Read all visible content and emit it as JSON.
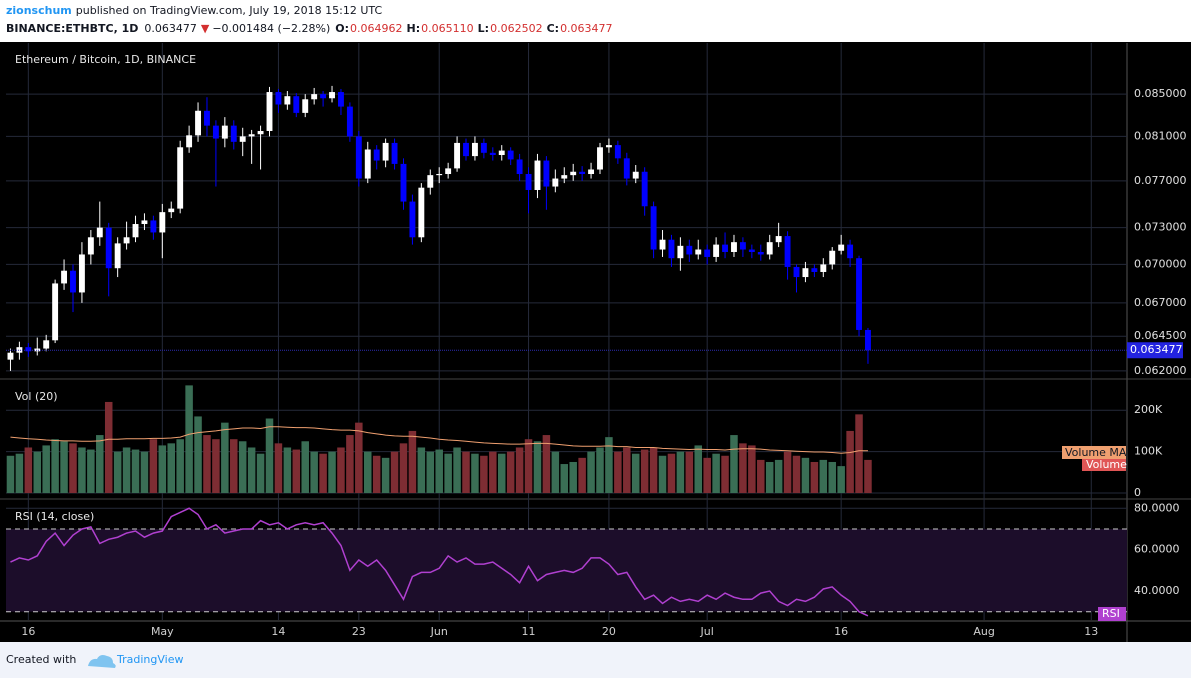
{
  "header": {
    "author": "zionschum",
    "published": "published on TradingView.com, July 19, 2018 15:12 UTC",
    "symbol": "BINANCE:ETHBTC, 1D",
    "close": "0.063477",
    "arrow": "▼",
    "change": "−0.001484 (−2.28%)",
    "open_label": "O:",
    "open": "0.064962",
    "high_label": "H:",
    "high": "0.065110",
    "low_label": "L:",
    "low": "0.062502",
    "close_label": "C:"
  },
  "chart_data": [
    {
      "type": "candlestick",
      "title": "Ethereum / Bitcoin, 1D, BINANCE",
      "log": true,
      "grid": true,
      "up_color": "#ffffff",
      "down_color": "#0000ff",
      "dates": [
        "2018-04-14",
        "2018-04-15",
        "2018-04-16",
        "2018-04-17",
        "2018-04-18",
        "2018-04-19",
        "2018-04-20",
        "2018-04-21",
        "2018-04-22",
        "2018-04-23",
        "2018-04-24",
        "2018-04-25",
        "2018-04-26",
        "2018-04-27",
        "2018-04-28",
        "2018-04-29",
        "2018-04-30",
        "2018-05-01",
        "2018-05-02",
        "2018-05-03",
        "2018-05-04",
        "2018-05-05",
        "2018-05-06",
        "2018-05-07",
        "2018-05-08",
        "2018-05-09",
        "2018-05-10",
        "2018-05-11",
        "2018-05-12",
        "2018-05-13",
        "2018-05-14",
        "2018-05-15",
        "2018-05-16",
        "2018-05-17",
        "2018-05-18",
        "2018-05-19",
        "2018-05-20",
        "2018-05-21",
        "2018-05-22",
        "2018-05-23",
        "2018-05-24",
        "2018-05-25",
        "2018-05-26",
        "2018-05-27",
        "2018-05-28",
        "2018-05-29",
        "2018-05-30",
        "2018-05-31",
        "2018-06-01",
        "2018-06-02",
        "2018-06-03",
        "2018-06-04",
        "2018-06-05",
        "2018-06-06",
        "2018-06-07",
        "2018-06-08",
        "2018-06-09",
        "2018-06-10",
        "2018-06-11",
        "2018-06-12",
        "2018-06-13",
        "2018-06-14",
        "2018-06-15",
        "2018-06-16",
        "2018-06-17",
        "2018-06-18",
        "2018-06-19",
        "2018-06-20",
        "2018-06-21",
        "2018-06-22",
        "2018-06-23",
        "2018-06-24",
        "2018-06-25",
        "2018-06-26",
        "2018-06-27",
        "2018-06-28",
        "2018-06-29",
        "2018-06-30",
        "2018-07-01",
        "2018-07-02",
        "2018-07-03",
        "2018-07-04",
        "2018-07-05",
        "2018-07-06",
        "2018-07-07",
        "2018-07-08",
        "2018-07-09",
        "2018-07-10",
        "2018-07-11",
        "2018-07-12",
        "2018-07-13",
        "2018-07-14",
        "2018-07-15",
        "2018-07-16",
        "2018-07-17",
        "2018-07-18",
        "2018-07-19"
      ],
      "open": [
        0.0628,
        0.0633,
        0.0637,
        0.0634,
        0.0636,
        0.0642,
        0.0685,
        0.0695,
        0.0678,
        0.0708,
        0.0722,
        0.073,
        0.0697,
        0.0717,
        0.0722,
        0.0733,
        0.0736,
        0.0726,
        0.0743,
        0.0746,
        0.08,
        0.0811,
        0.0834,
        0.082,
        0.0808,
        0.082,
        0.0805,
        0.081,
        0.0812,
        0.0815,
        0.0852,
        0.084,
        0.0848,
        0.0832,
        0.0845,
        0.085,
        0.0846,
        0.0852,
        0.0838,
        0.081,
        0.0772,
        0.0798,
        0.0788,
        0.0804,
        0.0785,
        0.0752,
        0.0722,
        0.0764,
        0.0775,
        0.0776,
        0.0781,
        0.0804,
        0.0792,
        0.0804,
        0.0795,
        0.0793,
        0.0797,
        0.0789,
        0.0776,
        0.0762,
        0.0788,
        0.0765,
        0.0772,
        0.0775,
        0.0778,
        0.0776,
        0.078,
        0.08,
        0.0802,
        0.079,
        0.0772,
        0.0778,
        0.0748,
        0.0712,
        0.072,
        0.0705,
        0.0715,
        0.0708,
        0.0712,
        0.0706,
        0.0716,
        0.071,
        0.0718,
        0.0712,
        0.071,
        0.0708,
        0.0718,
        0.0723,
        0.0698,
        0.069,
        0.0697,
        0.0694,
        0.07,
        0.0711,
        0.0716,
        0.0705,
        0.064962
      ],
      "high": [
        0.0636,
        0.0641,
        0.064,
        0.0644,
        0.0646,
        0.0688,
        0.0704,
        0.07,
        0.0718,
        0.0728,
        0.0752,
        0.0734,
        0.0722,
        0.0735,
        0.074,
        0.0742,
        0.074,
        0.075,
        0.0752,
        0.0806,
        0.082,
        0.0842,
        0.0847,
        0.0825,
        0.0828,
        0.0825,
        0.0818,
        0.0816,
        0.082,
        0.0857,
        0.0855,
        0.0853,
        0.0851,
        0.085,
        0.0856,
        0.0853,
        0.0858,
        0.0855,
        0.0842,
        0.0815,
        0.0805,
        0.0802,
        0.0808,
        0.0808,
        0.079,
        0.0758,
        0.0768,
        0.078,
        0.0782,
        0.0786,
        0.081,
        0.0808,
        0.081,
        0.0808,
        0.08,
        0.0802,
        0.08,
        0.0794,
        0.0782,
        0.0794,
        0.0792,
        0.078,
        0.0782,
        0.0785,
        0.0783,
        0.0786,
        0.0804,
        0.0808,
        0.0806,
        0.0795,
        0.0784,
        0.0782,
        0.0752,
        0.0728,
        0.0724,
        0.0722,
        0.072,
        0.072,
        0.0716,
        0.0722,
        0.0726,
        0.0724,
        0.0722,
        0.0716,
        0.0716,
        0.0724,
        0.0734,
        0.0727,
        0.07,
        0.0702,
        0.07,
        0.0705,
        0.0714,
        0.0724,
        0.072,
        0.0707,
        0.06511
      ],
      "low": [
        0.062,
        0.0628,
        0.063,
        0.0631,
        0.0634,
        0.064,
        0.068,
        0.0663,
        0.067,
        0.07,
        0.0715,
        0.0675,
        0.069,
        0.0712,
        0.0718,
        0.0728,
        0.072,
        0.0705,
        0.0738,
        0.0742,
        0.0795,
        0.0805,
        0.081,
        0.0765,
        0.08,
        0.0798,
        0.0792,
        0.0785,
        0.078,
        0.081,
        0.0832,
        0.0835,
        0.0828,
        0.0828,
        0.084,
        0.0838,
        0.0842,
        0.083,
        0.0805,
        0.0765,
        0.0768,
        0.078,
        0.0782,
        0.078,
        0.0745,
        0.0716,
        0.0718,
        0.0758,
        0.0768,
        0.0772,
        0.0778,
        0.0788,
        0.0788,
        0.079,
        0.0788,
        0.0788,
        0.0784,
        0.077,
        0.0742,
        0.0755,
        0.0745,
        0.076,
        0.0768,
        0.077,
        0.077,
        0.0772,
        0.0776,
        0.0795,
        0.0785,
        0.0766,
        0.0768,
        0.074,
        0.0705,
        0.0706,
        0.0698,
        0.0695,
        0.0702,
        0.0704,
        0.07,
        0.0702,
        0.0705,
        0.0706,
        0.0706,
        0.0705,
        0.0703,
        0.0704,
        0.0714,
        0.0688,
        0.0678,
        0.0686,
        0.069,
        0.069,
        0.0696,
        0.0708,
        0.0698,
        0.0645,
        0.062502
      ],
      "close": [
        0.0633,
        0.0637,
        0.0634,
        0.0636,
        0.0642,
        0.0685,
        0.0695,
        0.0678,
        0.0708,
        0.0722,
        0.073,
        0.0697,
        0.0717,
        0.0722,
        0.0733,
        0.0736,
        0.0726,
        0.0743,
        0.0746,
        0.08,
        0.0811,
        0.0834,
        0.082,
        0.0808,
        0.082,
        0.0805,
        0.081,
        0.0812,
        0.0815,
        0.0852,
        0.084,
        0.0848,
        0.0832,
        0.0845,
        0.085,
        0.0846,
        0.0852,
        0.0838,
        0.081,
        0.0772,
        0.0798,
        0.0788,
        0.0804,
        0.0785,
        0.0752,
        0.0722,
        0.0764,
        0.0775,
        0.0776,
        0.0781,
        0.0804,
        0.0792,
        0.0804,
        0.0795,
        0.0793,
        0.0797,
        0.0789,
        0.0776,
        0.0762,
        0.0788,
        0.0765,
        0.0772,
        0.0775,
        0.0778,
        0.0776,
        0.078,
        0.08,
        0.0802,
        0.079,
        0.0772,
        0.0778,
        0.0748,
        0.0712,
        0.072,
        0.0705,
        0.0715,
        0.0708,
        0.0712,
        0.0706,
        0.0716,
        0.071,
        0.0718,
        0.0712,
        0.071,
        0.0708,
        0.0718,
        0.0723,
        0.0698,
        0.069,
        0.0697,
        0.0694,
        0.07,
        0.0711,
        0.0716,
        0.0705,
        0.064962,
        0.063477
      ],
      "ylim": [
        0.0615,
        0.0901
      ],
      "yticks": [
        {
          "value": 0.085,
          "label": "0.085000"
        },
        {
          "value": 0.081,
          "label": "0.081000"
        },
        {
          "value": 0.077,
          "label": "0.077000"
        },
        {
          "value": 0.073,
          "label": "0.073000"
        },
        {
          "value": 0.07,
          "label": "0.070000"
        },
        {
          "value": 0.067,
          "label": "0.067000"
        },
        {
          "value": 0.0645,
          "label": "0.064500"
        },
        {
          "value": 0.062,
          "label": "0.062000"
        }
      ],
      "xlim": [
        "2018-04-13T12:00:00Z",
        "2018-08-17T00:00:00Z"
      ],
      "xticks": [
        {
          "value": "2018-04-16",
          "label": "16"
        },
        {
          "value": "2018-05-01",
          "label": "May"
        },
        {
          "value": "2018-05-14",
          "label": "14"
        },
        {
          "value": "2018-05-23",
          "label": "23"
        },
        {
          "value": "2018-06-01",
          "label": "Jun"
        },
        {
          "value": "2018-06-11",
          "label": "11"
        },
        {
          "value": "2018-06-20",
          "label": "20"
        },
        {
          "value": "2018-07-01",
          "label": "Jul"
        },
        {
          "value": "2018-07-16",
          "label": "16"
        },
        {
          "value": "2018-08-01",
          "label": "Aug"
        },
        {
          "value": "2018-08-13",
          "label": "13"
        }
      ]
    },
    {
      "type": "bar",
      "title": "Vol (20)",
      "grid": true,
      "series": [
        {
          "name": "Volume",
          "up_color": "#3a6e55",
          "down_color": "#7e2d33",
          "label_color": "#e05555",
          "values": [
            90000,
            95000,
            110000,
            100000,
            115000,
            130000,
            125000,
            120000,
            110000,
            105000,
            140000,
            220000,
            100000,
            110000,
            105000,
            100000,
            130000,
            115000,
            120000,
            130000,
            260000,
            185000,
            140000,
            130000,
            170000,
            130000,
            125000,
            110000,
            95000,
            180000,
            120000,
            110000,
            105000,
            125000,
            100000,
            95000,
            100000,
            110000,
            140000,
            170000,
            100000,
            90000,
            85000,
            100000,
            120000,
            150000,
            110000,
            100000,
            105000,
            95000,
            110000,
            100000,
            95000,
            90000,
            100000,
            95000,
            100000,
            110000,
            130000,
            125000,
            140000,
            100000,
            70000,
            75000,
            85000,
            100000,
            110000,
            135000,
            100000,
            110000,
            95000,
            105000,
            110000,
            90000,
            95000,
            100000,
            100000,
            115000,
            85000,
            95000,
            90000,
            140000,
            120000,
            115000,
            80000,
            75000,
            80000,
            100000,
            90000,
            85000,
            75000,
            80000,
            75000,
            65000,
            150000,
            190000,
            80000
          ]
        },
        {
          "name": "Volume MA",
          "color": "#f0a070",
          "values": [
            135000,
            133000,
            131000,
            130000,
            128000,
            127000,
            126000,
            126000,
            125000,
            125000,
            126000,
            130000,
            130000,
            131000,
            131000,
            131000,
            132000,
            132000,
            133000,
            135000,
            142000,
            146000,
            148000,
            150000,
            153000,
            155000,
            157000,
            157000,
            156000,
            160000,
            160000,
            159000,
            158000,
            158000,
            157000,
            155000,
            153000,
            152000,
            152000,
            150000,
            146000,
            143000,
            140000,
            138000,
            137000,
            137000,
            135000,
            133000,
            130000,
            128000,
            127000,
            125000,
            123000,
            121000,
            120000,
            119000,
            118000,
            118000,
            119000,
            120000,
            120000,
            118000,
            116000,
            114000,
            113000,
            113000,
            113000,
            114000,
            112000,
            112000,
            110000,
            110000,
            110000,
            108000,
            107000,
            106000,
            105000,
            106000,
            105000,
            105000,
            104000,
            106000,
            107000,
            107000,
            106000,
            104000,
            103000,
            102000,
            101000,
            100000,
            99000,
            99000,
            98000,
            96000,
            98000,
            102000,
            102000
          ]
        }
      ],
      "ylim": [
        -12000,
        273000
      ],
      "yticks": [
        {
          "value": 200000,
          "label": "200K"
        },
        {
          "value": 100000,
          "label": "100K"
        },
        0
      ]
    },
    {
      "type": "line",
      "title": "RSI (14, close)",
      "grid": true,
      "bands": [
        30,
        70
      ],
      "band_color": "#1c0d2a",
      "series": [
        {
          "name": "RSI",
          "color": "#b040d0",
          "values": [
            54,
            56,
            55,
            57,
            64,
            68,
            62,
            67,
            70,
            71,
            63,
            65,
            66,
            68,
            69,
            66,
            68,
            69,
            76,
            78,
            80,
            77,
            70,
            72,
            68,
            69,
            70,
            70,
            74,
            72,
            73,
            70,
            72,
            73,
            72,
            73,
            68,
            62,
            50,
            55,
            52,
            55,
            50,
            43,
            36,
            47,
            49,
            49,
            51,
            57,
            54,
            56,
            53,
            53,
            54,
            51,
            48,
            44,
            52,
            45,
            48,
            49,
            50,
            49,
            51,
            56,
            56,
            53,
            48,
            49,
            42,
            36,
            38,
            34,
            37,
            35,
            36,
            35,
            38,
            36,
            39,
            37,
            36,
            36,
            39,
            40,
            35,
            33,
            36,
            35,
            37,
            41,
            42,
            38,
            35,
            30,
            28
          ]
        }
      ],
      "ylim": [
        26,
        84
      ],
      "yticks": [
        {
          "value": 80,
          "label": "80.0000"
        },
        {
          "value": 60,
          "label": "60.0000"
        },
        {
          "value": 40,
          "label": "40.0000"
        }
      ]
    }
  ],
  "footer": {
    "created": "Created with",
    "brand": "TradingView"
  }
}
